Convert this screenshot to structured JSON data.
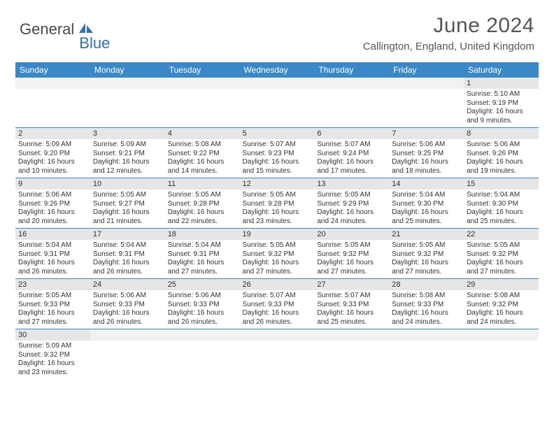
{
  "logo": {
    "part1": "General",
    "part2": "Blue"
  },
  "title": "June 2024",
  "location": "Callington, England, United Kingdom",
  "colors": {
    "header_bg": "#3b88c8",
    "header_text": "#ffffff",
    "daynum_bg": "#e6e6e6",
    "row_border": "#3b88c8",
    "title_color": "#555555",
    "body_text": "#333333",
    "logo_gray": "#4a4a4a",
    "logo_blue": "#2a72b5"
  },
  "typography": {
    "month_title_fontsize": 30,
    "location_fontsize": 15,
    "weekday_fontsize": 12,
    "daynum_fontsize": 11,
    "body_fontsize": 10
  },
  "weekdays": [
    "Sunday",
    "Monday",
    "Tuesday",
    "Wednesday",
    "Thursday",
    "Friday",
    "Saturday"
  ],
  "grid": [
    [
      null,
      null,
      null,
      null,
      null,
      null,
      {
        "n": "1",
        "sunrise": "Sunrise: 5:10 AM",
        "sunset": "Sunset: 9:19 PM",
        "d1": "Daylight: 16 hours",
        "d2": "and 9 minutes."
      }
    ],
    [
      {
        "n": "2",
        "sunrise": "Sunrise: 5:09 AM",
        "sunset": "Sunset: 9:20 PM",
        "d1": "Daylight: 16 hours",
        "d2": "and 10 minutes."
      },
      {
        "n": "3",
        "sunrise": "Sunrise: 5:09 AM",
        "sunset": "Sunset: 9:21 PM",
        "d1": "Daylight: 16 hours",
        "d2": "and 12 minutes."
      },
      {
        "n": "4",
        "sunrise": "Sunrise: 5:08 AM",
        "sunset": "Sunset: 9:22 PM",
        "d1": "Daylight: 16 hours",
        "d2": "and 14 minutes."
      },
      {
        "n": "5",
        "sunrise": "Sunrise: 5:07 AM",
        "sunset": "Sunset: 9:23 PM",
        "d1": "Daylight: 16 hours",
        "d2": "and 15 minutes."
      },
      {
        "n": "6",
        "sunrise": "Sunrise: 5:07 AM",
        "sunset": "Sunset: 9:24 PM",
        "d1": "Daylight: 16 hours",
        "d2": "and 17 minutes."
      },
      {
        "n": "7",
        "sunrise": "Sunrise: 5:06 AM",
        "sunset": "Sunset: 9:25 PM",
        "d1": "Daylight: 16 hours",
        "d2": "and 18 minutes."
      },
      {
        "n": "8",
        "sunrise": "Sunrise: 5:06 AM",
        "sunset": "Sunset: 9:26 PM",
        "d1": "Daylight: 16 hours",
        "d2": "and 19 minutes."
      }
    ],
    [
      {
        "n": "9",
        "sunrise": "Sunrise: 5:06 AM",
        "sunset": "Sunset: 9:26 PM",
        "d1": "Daylight: 16 hours",
        "d2": "and 20 minutes."
      },
      {
        "n": "10",
        "sunrise": "Sunrise: 5:05 AM",
        "sunset": "Sunset: 9:27 PM",
        "d1": "Daylight: 16 hours",
        "d2": "and 21 minutes."
      },
      {
        "n": "11",
        "sunrise": "Sunrise: 5:05 AM",
        "sunset": "Sunset: 9:28 PM",
        "d1": "Daylight: 16 hours",
        "d2": "and 22 minutes."
      },
      {
        "n": "12",
        "sunrise": "Sunrise: 5:05 AM",
        "sunset": "Sunset: 9:28 PM",
        "d1": "Daylight: 16 hours",
        "d2": "and 23 minutes."
      },
      {
        "n": "13",
        "sunrise": "Sunrise: 5:05 AM",
        "sunset": "Sunset: 9:29 PM",
        "d1": "Daylight: 16 hours",
        "d2": "and 24 minutes."
      },
      {
        "n": "14",
        "sunrise": "Sunrise: 5:04 AM",
        "sunset": "Sunset: 9:30 PM",
        "d1": "Daylight: 16 hours",
        "d2": "and 25 minutes."
      },
      {
        "n": "15",
        "sunrise": "Sunrise: 5:04 AM",
        "sunset": "Sunset: 9:30 PM",
        "d1": "Daylight: 16 hours",
        "d2": "and 25 minutes."
      }
    ],
    [
      {
        "n": "16",
        "sunrise": "Sunrise: 5:04 AM",
        "sunset": "Sunset: 9:31 PM",
        "d1": "Daylight: 16 hours",
        "d2": "and 26 minutes."
      },
      {
        "n": "17",
        "sunrise": "Sunrise: 5:04 AM",
        "sunset": "Sunset: 9:31 PM",
        "d1": "Daylight: 16 hours",
        "d2": "and 26 minutes."
      },
      {
        "n": "18",
        "sunrise": "Sunrise: 5:04 AM",
        "sunset": "Sunset: 9:31 PM",
        "d1": "Daylight: 16 hours",
        "d2": "and 27 minutes."
      },
      {
        "n": "19",
        "sunrise": "Sunrise: 5:05 AM",
        "sunset": "Sunset: 9:32 PM",
        "d1": "Daylight: 16 hours",
        "d2": "and 27 minutes."
      },
      {
        "n": "20",
        "sunrise": "Sunrise: 5:05 AM",
        "sunset": "Sunset: 9:32 PM",
        "d1": "Daylight: 16 hours",
        "d2": "and 27 minutes."
      },
      {
        "n": "21",
        "sunrise": "Sunrise: 5:05 AM",
        "sunset": "Sunset: 9:32 PM",
        "d1": "Daylight: 16 hours",
        "d2": "and 27 minutes."
      },
      {
        "n": "22",
        "sunrise": "Sunrise: 5:05 AM",
        "sunset": "Sunset: 9:32 PM",
        "d1": "Daylight: 16 hours",
        "d2": "and 27 minutes."
      }
    ],
    [
      {
        "n": "23",
        "sunrise": "Sunrise: 5:05 AM",
        "sunset": "Sunset: 9:33 PM",
        "d1": "Daylight: 16 hours",
        "d2": "and 27 minutes."
      },
      {
        "n": "24",
        "sunrise": "Sunrise: 5:06 AM",
        "sunset": "Sunset: 9:33 PM",
        "d1": "Daylight: 16 hours",
        "d2": "and 26 minutes."
      },
      {
        "n": "25",
        "sunrise": "Sunrise: 5:06 AM",
        "sunset": "Sunset: 9:33 PM",
        "d1": "Daylight: 16 hours",
        "d2": "and 26 minutes."
      },
      {
        "n": "26",
        "sunrise": "Sunrise: 5:07 AM",
        "sunset": "Sunset: 9:33 PM",
        "d1": "Daylight: 16 hours",
        "d2": "and 26 minutes."
      },
      {
        "n": "27",
        "sunrise": "Sunrise: 5:07 AM",
        "sunset": "Sunset: 9:33 PM",
        "d1": "Daylight: 16 hours",
        "d2": "and 25 minutes."
      },
      {
        "n": "28",
        "sunrise": "Sunrise: 5:08 AM",
        "sunset": "Sunset: 9:33 PM",
        "d1": "Daylight: 16 hours",
        "d2": "and 24 minutes."
      },
      {
        "n": "29",
        "sunrise": "Sunrise: 5:08 AM",
        "sunset": "Sunset: 9:32 PM",
        "d1": "Daylight: 16 hours",
        "d2": "and 24 minutes."
      }
    ],
    [
      {
        "n": "30",
        "sunrise": "Sunrise: 5:09 AM",
        "sunset": "Sunset: 9:32 PM",
        "d1": "Daylight: 16 hours",
        "d2": "and 23 minutes."
      },
      null,
      null,
      null,
      null,
      null,
      null
    ]
  ]
}
